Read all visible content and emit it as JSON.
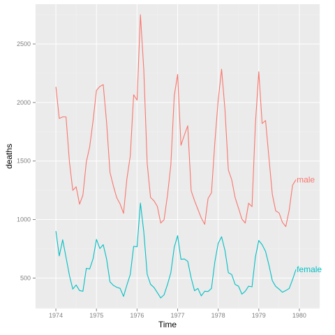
{
  "chart_data": {
    "type": "line",
    "xlabel": "Time",
    "ylabel": "deaths",
    "xlim": [
      1973.5,
      1980.5
    ],
    "ylim": [
      240,
      2840
    ],
    "x_ticks": [
      1974,
      1975,
      1976,
      1977,
      1978,
      1979,
      1980
    ],
    "y_ticks": [
      500,
      1000,
      1500,
      2000,
      2500
    ],
    "grid": true,
    "legend": "none",
    "x_start": 1974,
    "x_step": 0.0833333,
    "series": [
      {
        "name": "male",
        "label": "male",
        "color": "#f8766d",
        "values": [
          2134,
          1863,
          1877,
          1877,
          1492,
          1249,
          1280,
          1131,
          1209,
          1492,
          1621,
          1846,
          2103,
          2137,
          2153,
          1833,
          1403,
          1288,
          1186,
          1133,
          1053,
          1347,
          1545,
          2066,
          2020,
          2750,
          2283,
          1479,
          1189,
          1160,
          1113,
          970,
          999,
          1208,
          1467,
          2059,
          2240,
          1634,
          1722,
          1801,
          1246,
          1162,
          1087,
          1013,
          959,
          1179,
          1229,
          1655,
          2019,
          2284,
          1942,
          1423,
          1340,
          1187,
          1098,
          1004,
          970,
          1140,
          1110,
          1812,
          2263,
          1820,
          1846,
          1531,
          1215,
          1075,
          1056,
          975,
          940,
          1081,
          1294,
          1341
        ]
      },
      {
        "name": "female",
        "label": "female",
        "color": "#00bfc4",
        "values": [
          901,
          689,
          827,
          677,
          522,
          406,
          441,
          393,
          387,
          582,
          578,
          666,
          830,
          752,
          785,
          664,
          467,
          438,
          421,
          412,
          343,
          440,
          531,
          771,
          767,
          1141,
          896,
          532,
          447,
          420,
          376,
          330,
          357,
          445,
          546,
          764,
          862,
          660,
          663,
          643,
          502,
          392,
          411,
          348,
          387,
          385,
          411,
          638,
          796,
          853,
          737,
          546,
          530,
          446,
          431,
          362,
          387,
          430,
          425,
          679,
          821,
          785,
          727,
          612,
          478,
          429,
          405,
          379,
          393,
          411,
          487,
          574
        ]
      }
    ]
  }
}
